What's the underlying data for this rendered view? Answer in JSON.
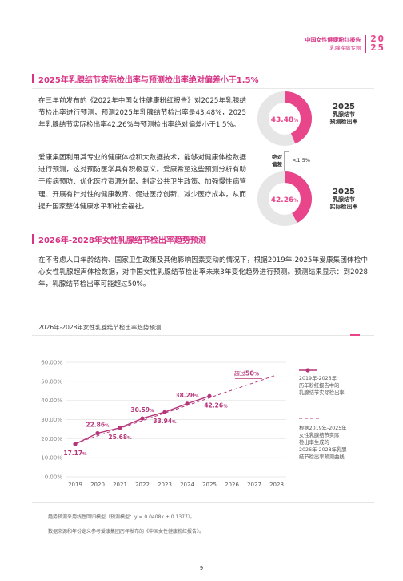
{
  "header": {
    "title": "中国女性健康粉红报告",
    "subtitle": "乳腺疾病专题",
    "year_top": "20",
    "year_bottom": "25"
  },
  "section1": {
    "title": "2025年乳腺结节实际检出率与预测检出率绝对偏差小于1.5%",
    "para1": "在三年前发布的《2022年中国女性健康粉红报告》对2025年乳腺结节检出率进行预测，预测2025年乳腺结节检出率是43.48%，2025年乳腺结节实际检出率42.26%与预测检出率绝对偏差小于1.5%。",
    "para2": "爱康集团利用其专业的健康体检和大数据技术，能够对健康体检数据进行预测，这对预防医学具有积极意义。爱康希望这些预测分析有助于疾病预防、优化医疗资源分配、制定公共卫生政策、加强慢性病管理、开展有针对性的健康教育、促进医疗创新、减少医疗成本，从而提升国家整体健康水平和社会福祉。",
    "donut_predicted": {
      "value": 43.48,
      "label": "43.48",
      "unit": "%",
      "year": "2025",
      "desc1": "乳腺结节",
      "desc2": "预测检出率"
    },
    "donut_actual": {
      "value": 42.26,
      "label": "42.26",
      "unit": "%",
      "year": "2025",
      "desc1": "乳腺结节",
      "desc2": "实际检出率"
    },
    "deviation": {
      "label1": "绝对",
      "label2": "偏差",
      "value": "<1.5%"
    }
  },
  "section2": {
    "title": "2026年-2028年女性乳腺结节检出率趋势预测",
    "para": "在不考虑人口年龄结构、国家卫生政策及其他影响因素变动的情况下，根据2019年-2025年爱康集团体检中心女性乳腺超声体检数据，对中国女性乳腺结节检出率未来3年变化趋势进行预测。预测结果显示：到2028年，乳腺结节检出率可能超过50%。"
  },
  "chart_title": "2026年-2028年女性乳腺结节检出率趋势预测",
  "chart_data": {
    "type": "line",
    "x": [
      2019,
      2020,
      2021,
      2022,
      2023,
      2024,
      2025,
      2026,
      2027,
      2028
    ],
    "series": [
      {
        "name": "2019年-2025年历年粉红报告中的乳腺结节实际检出率",
        "x": [
          2019,
          2020,
          2021,
          2022,
          2023,
          2024,
          2025
        ],
        "values": [
          17.17,
          22.86,
          25.68,
          30.59,
          33.94,
          38.28,
          42.26
        ],
        "labels": [
          "17.17%",
          "22.86%",
          "25.68%",
          "30.59%",
          "33.94%",
          "38.28%",
          "42.26%"
        ],
        "style": "solid"
      },
      {
        "name": "根据2019年-2025年女性乳腺结节实际检出率生成的2026年-2028年乳腺结节检出率预测曲线",
        "x": [
          2019,
          2028
        ],
        "values": [
          17.5,
          53.3
        ],
        "style": "dashed"
      }
    ],
    "annotation": "超过50%",
    "yticks": [
      "0.00%",
      "10.00%",
      "20.00%",
      "30.00%",
      "40.00%",
      "50.00%",
      "60.00%"
    ],
    "ylim": [
      0,
      60
    ],
    "grid": true,
    "legend_position": "right",
    "legend": {
      "actual": [
        "2019年-2025年",
        "历年粉红报告中的",
        "乳腺结节实际检出率"
      ],
      "predicted": [
        "根据2019年-2025年",
        "女性乳腺结节实际",
        "检出率生成的",
        "2026年-2028年乳腺",
        "结节检出率预测曲线"
      ]
    },
    "colors": {
      "line": "#b5367a",
      "dashed": "#b5367a",
      "accent": "#e8458b",
      "grid": "#e3e3e3"
    }
  },
  "footnotes": {
    "note1": "趋势预测采用线性回归模型（预测模型：y = 0.0408x + 0.1377）。",
    "note2": "数据来源和年份定义参考爱康集团历年发布的《中国女性健康粉红报告》。"
  },
  "page_number": "9",
  "colors": {
    "brand": "#d63384",
    "accent": "#e8458b",
    "donut_track": "#e6e6e6"
  }
}
